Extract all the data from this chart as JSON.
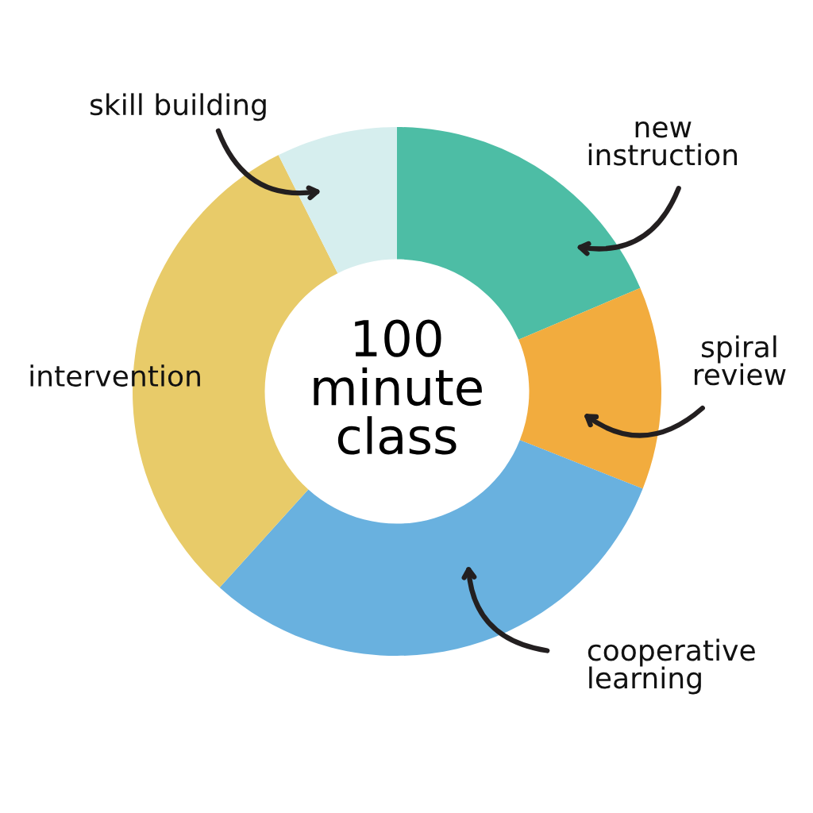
{
  "chart_data": {
    "type": "donut",
    "categories": [
      "new\ninstruction",
      "spiral\nreview",
      "cooperative\nlearning",
      "intervention",
      "skill building"
    ],
    "values": [
      18.6,
      12.4,
      30.7,
      30.9,
      7.4
    ],
    "colors": [
      "#4dbda5",
      "#f2ac3e",
      "#69b1df",
      "#e8cb69",
      "#d6eeee"
    ],
    "annotations": [
      "100\nminute\nclass"
    ]
  }
}
